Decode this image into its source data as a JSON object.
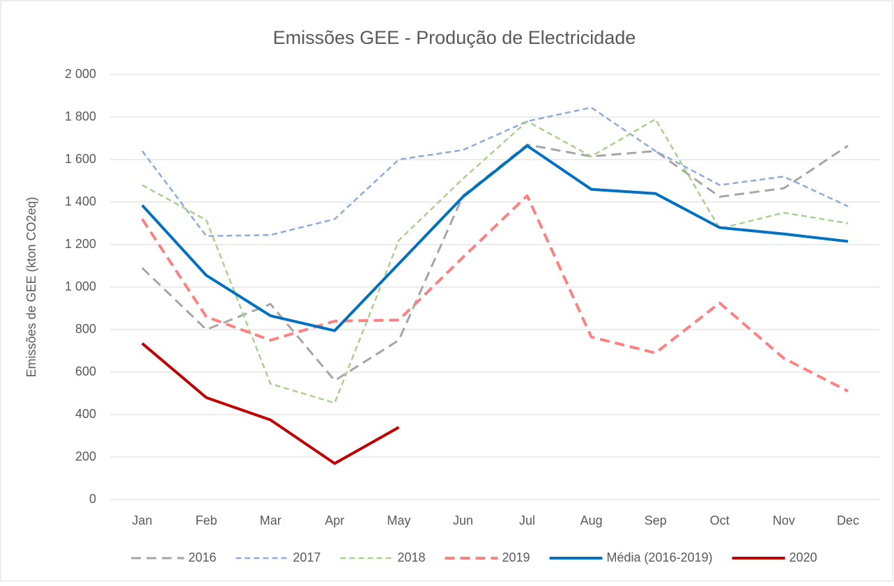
{
  "chart_data": {
    "type": "line",
    "title": "Emissões GEE - Produção de Electricidade",
    "y_label": "Emissões de GEE (kton CO2eq)",
    "categories": [
      "Jan",
      "Feb",
      "Mar",
      "Apr",
      "May",
      "Jun",
      "Jul",
      "Aug",
      "Sep",
      "Oct",
      "Nov",
      "Dec"
    ],
    "series": [
      {
        "name": "2016",
        "color": "#a5a5a5",
        "line_style": "dashed",
        "width": 3,
        "values": [
          1090,
          800,
          920,
          560,
          750,
          1430,
          1670,
          1615,
          1640,
          1425,
          1465,
          1665
        ]
      },
      {
        "name": "2017",
        "color": "#8faadc",
        "line_style": "dashed",
        "width": 2.5,
        "values": [
          1640,
          1240,
          1245,
          1320,
          1600,
          1645,
          1780,
          1845,
          1640,
          1480,
          1520,
          1380
        ]
      },
      {
        "name": "2018",
        "color": "#a9d18e",
        "line_style": "dashed",
        "width": 2.5,
        "values": [
          1480,
          1315,
          545,
          455,
          1220,
          1510,
          1780,
          1615,
          1790,
          1275,
          1350,
          1300
        ]
      },
      {
        "name": "2019",
        "color": "#ff8080",
        "line_style": "dashed",
        "width": 4,
        "values": [
          1320,
          860,
          750,
          840,
          845,
          1140,
          1430,
          765,
          690,
          925,
          665,
          510
        ]
      },
      {
        "name": "Média (2016-2019)",
        "color": "#0070c0",
        "line_style": "solid",
        "width": 4,
        "values": [
          1385,
          1055,
          865,
          795,
          1110,
          1425,
          1665,
          1460,
          1440,
          1280,
          1250,
          1215
        ]
      },
      {
        "name": "2020",
        "color": "#c00000",
        "line_style": "solid",
        "width": 4,
        "values": [
          735,
          480,
          375,
          170,
          340,
          null,
          null,
          null,
          null,
          null,
          null,
          null
        ]
      }
    ],
    "ylim": [
      0,
      2000
    ],
    "yticks": [
      0,
      200,
      400,
      600,
      800,
      {
        "value": 1000,
        "label": "1 000"
      },
      {
        "value": 1200,
        "label": "1 200"
      },
      {
        "value": 1400,
        "label": "1 400"
      },
      {
        "value": 1600,
        "label": "1 600"
      },
      {
        "value": 1800,
        "label": "1 800"
      },
      {
        "value": 2000,
        "label": "2 000"
      }
    ],
    "grid": true,
    "legend": "bottom"
  }
}
